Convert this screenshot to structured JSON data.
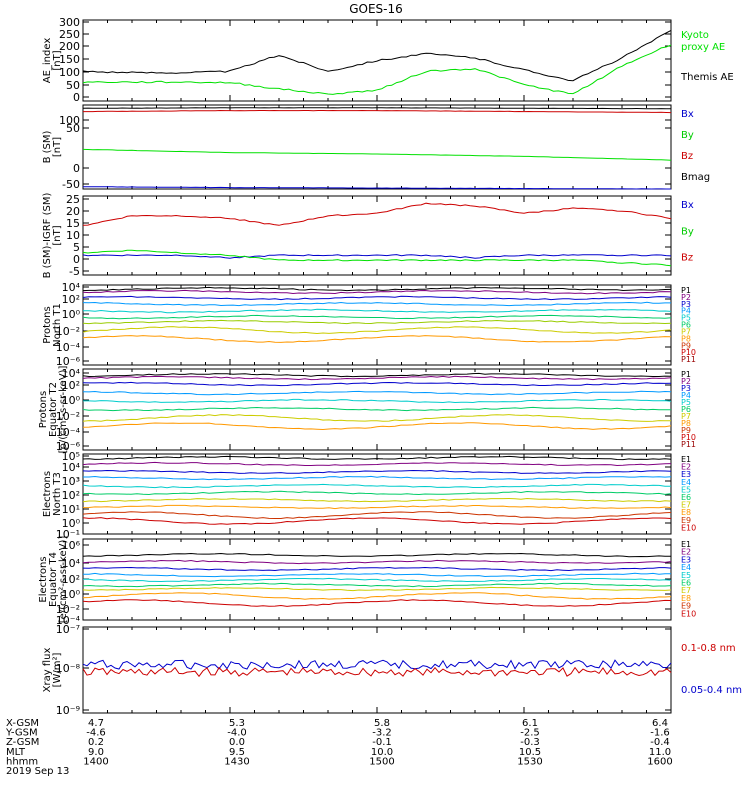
{
  "title": "GOES-16",
  "colors": {
    "black": "#000000",
    "green": "#00e000",
    "blue": "#0000cc",
    "red": "#cc0000",
    "legend_palette": [
      "#000000",
      "#800080",
      "#0000cc",
      "#0099ff",
      "#00cccc",
      "#00cc66",
      "#cccc00",
      "#ff9900",
      "#cc3300",
      "#cc0000",
      "#990000",
      "#660000"
    ]
  },
  "panels": [
    {
      "id": "ae",
      "ylabel_lines": [
        "AE_index",
        "[nT]"
      ],
      "ticks": [
        "300",
        "250",
        "200",
        "150",
        "100",
        "50",
        "0"
      ],
      "legend": [
        {
          "text": "Kyoto",
          "color": "#00e000"
        },
        {
          "text": "proxy AE",
          "color": "#00e000"
        },
        {
          "text": "Themis AE",
          "color": "#000000"
        }
      ]
    },
    {
      "id": "bsm",
      "ylabel_lines": [
        "B (SM)",
        "[nT]"
      ],
      "ticks": [
        "100",
        "50",
        "0",
        "-50"
      ],
      "legend": [
        {
          "text": "Bx",
          "color": "#0000cc"
        },
        {
          "text": "By",
          "color": "#00cc00"
        },
        {
          "text": "Bz",
          "color": "#cc0000"
        },
        {
          "text": "Bmag",
          "color": "#000000"
        }
      ]
    },
    {
      "id": "bigrf",
      "ylabel_lines": [
        "B (SM)-IGRF (SM)",
        "[nT]"
      ],
      "ticks": [
        "25",
        "20",
        "15",
        "10",
        "5",
        "0",
        "-5"
      ],
      "legend": [
        {
          "text": "Bx",
          "color": "#0000cc"
        },
        {
          "text": "By",
          "color": "#00cc00"
        },
        {
          "text": "Bz",
          "color": "#cc0000"
        }
      ]
    },
    {
      "id": "pn",
      "ylabel_lines": [
        "Protons",
        "North T1"
      ],
      "ticks": [
        "10⁴",
        "10²",
        "10⁰",
        "10⁻²",
        "10⁻⁴",
        "10⁻⁶"
      ],
      "legend": [
        {
          "text": "P1"
        },
        {
          "text": "P2"
        },
        {
          "text": "P3"
        },
        {
          "text": "P4"
        },
        {
          "text": "P5"
        },
        {
          "text": "P6"
        },
        {
          "text": "P7"
        },
        {
          "text": "P8"
        },
        {
          "text": "P9"
        },
        {
          "text": "P10"
        },
        {
          "text": "P11"
        }
      ]
    },
    {
      "id": "pe",
      "ylabel_lines": [
        "Protons",
        "Equator T2",
        "[p/(cm²-s-sr-keV)]"
      ],
      "ticks": [
        "10⁴",
        "10²",
        "10⁰",
        "10⁻²",
        "10⁻⁴",
        "10⁻⁶"
      ],
      "legend": [
        {
          "text": "P1"
        },
        {
          "text": "P2"
        },
        {
          "text": "P3"
        },
        {
          "text": "P4"
        },
        {
          "text": "P5"
        },
        {
          "text": "P6"
        },
        {
          "text": "P7"
        },
        {
          "text": "P8"
        },
        {
          "text": "P9"
        },
        {
          "text": "P10"
        },
        {
          "text": "P11"
        }
      ]
    },
    {
      "id": "en",
      "ylabel_lines": [
        "Electrons",
        "North T3"
      ],
      "ticks": [
        "10⁵",
        "10⁴",
        "10³",
        "10²",
        "10¹",
        "10⁰",
        "10⁻¹"
      ],
      "legend": [
        {
          "text": "E1"
        },
        {
          "text": "E2"
        },
        {
          "text": "E3"
        },
        {
          "text": "E4"
        },
        {
          "text": "E5"
        },
        {
          "text": "E6"
        },
        {
          "text": "E7"
        },
        {
          "text": "E8"
        },
        {
          "text": "E9"
        },
        {
          "text": "E10"
        }
      ]
    },
    {
      "id": "ee",
      "ylabel_lines": [
        "Electrons",
        "Equator T4",
        "[e/(cm²-s-sr-keV)]"
      ],
      "ticks": [
        "10⁶",
        "10⁴",
        "10²",
        "10⁰",
        "10⁻²",
        "10⁻⁴"
      ],
      "legend": [
        {
          "text": "E1"
        },
        {
          "text": "E2"
        },
        {
          "text": "E3"
        },
        {
          "text": "E4"
        },
        {
          "text": "E5"
        },
        {
          "text": "E6"
        },
        {
          "text": "E7"
        },
        {
          "text": "E8"
        },
        {
          "text": "E9"
        },
        {
          "text": "E10"
        }
      ]
    },
    {
      "id": "xray",
      "ylabel_lines": [
        "Xray flux",
        "[W/m²]"
      ],
      "ticks": [
        "10⁻⁷",
        "10⁻⁸",
        "10⁻⁹"
      ],
      "legend": [
        {
          "text": "0.1-0.8 nm",
          "color": "#cc0000"
        },
        {
          "text": "0.05-0.4 nm",
          "color": "#0000cc"
        }
      ]
    }
  ],
  "footer": {
    "labels": [
      "X-GSM",
      "Y-GSM",
      "Z-GSM",
      "MLT",
      "hhmm",
      "2019 Sep 13"
    ],
    "columns": [
      [
        "4.7",
        "-4.6",
        "0.2",
        "9.0",
        "1400"
      ],
      [
        "5.3",
        "-4.0",
        "0.0",
        "9.5",
        "1430"
      ],
      [
        "5.8",
        "-3.2",
        "-0.1",
        "10.0",
        "1500"
      ],
      [
        "6.1",
        "-2.5",
        "-0.3",
        "10.5",
        "1530"
      ],
      [
        "6.4",
        "-1.6",
        "-0.4",
        "11.0",
        "1600"
      ]
    ]
  },
  "chart_data": [
    {
      "type": "line",
      "panel": "ae",
      "x_label": "hhmm",
      "x": [
        1400,
        1410,
        1420,
        1430,
        1440,
        1450,
        1500,
        1510,
        1520,
        1530,
        1540,
        1550,
        1600
      ],
      "ylim": [
        0,
        300
      ],
      "series": [
        {
          "name": "Themis AE",
          "values": [
            110,
            105,
            105,
            110,
            170,
            110,
            150,
            175,
            160,
            115,
            75,
            160,
            260
          ]
        },
        {
          "name": "Kyoto proxy AE",
          "values": [
            70,
            70,
            70,
            68,
            45,
            25,
            40,
            110,
            120,
            60,
            25,
            130,
            210
          ]
        }
      ]
    },
    {
      "type": "line",
      "panel": "bsm",
      "ylim": [
        -50,
        130
      ],
      "x": [
        1400,
        1430,
        1500,
        1530,
        1600
      ],
      "series": [
        {
          "name": "Bmag",
          "values": [
            123,
            124,
            124,
            123,
            122
          ]
        },
        {
          "name": "Bz",
          "values": [
            116,
            118,
            118,
            116,
            114
          ]
        },
        {
          "name": "By",
          "values": [
            35,
            28,
            25,
            20,
            12
          ]
        },
        {
          "name": "Bx",
          "values": [
            -45,
            -47,
            -48,
            -49,
            -50
          ]
        }
      ]
    },
    {
      "type": "line",
      "panel": "bigrf",
      "ylim": [
        -5,
        27
      ],
      "x": [
        1400,
        1410,
        1420,
        1430,
        1440,
        1450,
        1500,
        1510,
        1520,
        1530,
        1540,
        1550,
        1600
      ],
      "series": [
        {
          "name": "Bz",
          "values": [
            15,
            19,
            19,
            18,
            15,
            19,
            20,
            24,
            23,
            20,
            22,
            21,
            18
          ]
        },
        {
          "name": "Bx",
          "values": [
            3,
            3,
            3,
            2,
            3,
            3,
            3,
            3,
            2,
            3,
            3,
            3,
            3
          ]
        },
        {
          "name": "By",
          "values": [
            4,
            5,
            4,
            3,
            1,
            1,
            1,
            1,
            1,
            1,
            1,
            0,
            -1
          ]
        }
      ]
    },
    {
      "type": "line",
      "panel": "pn",
      "yscale": "log",
      "ylim": [
        1e-06,
        10000.0
      ],
      "series": [
        {
          "name": "P1",
          "values": [
            2000
          ]
        },
        {
          "name": "P2",
          "values": [
            500
          ]
        },
        {
          "name": "P3",
          "values": [
            80
          ]
        },
        {
          "name": "P4",
          "values": [
            10
          ]
        },
        {
          "name": "P5",
          "values": [
            1
          ]
        },
        {
          "name": "P6",
          "values": [
            0.08
          ]
        },
        {
          "name": "P7",
          "values": [
            0.008
          ]
        },
        {
          "name": "P8",
          "values": [
            0.001
          ]
        },
        {
          "name": "P9",
          "values": [
            0.0002
          ]
        }
      ]
    },
    {
      "type": "line",
      "panel": "pe",
      "yscale": "log",
      "ylim": [
        1e-06,
        10000.0
      ],
      "series": [
        {
          "name": "P1",
          "values": [
            2000
          ]
        },
        {
          "name": "P2",
          "values": [
            500
          ]
        },
        {
          "name": "P3",
          "values": [
            60
          ]
        },
        {
          "name": "P4",
          "values": [
            5
          ]
        },
        {
          "name": "P5",
          "values": [
            0.5
          ]
        },
        {
          "name": "P6",
          "values": [
            0.02
          ]
        },
        {
          "name": "P7",
          "values": [
            0.002
          ]
        },
        {
          "name": "P8",
          "values": [
            0.0002
          ]
        }
      ]
    },
    {
      "type": "line",
      "panel": "en",
      "yscale": "log",
      "ylim": [
        0.1,
        100000.0
      ],
      "series": [
        {
          "name": "E1",
          "values": [
            50000
          ]
        },
        {
          "name": "E2",
          "values": [
            15000
          ]
        },
        {
          "name": "E3",
          "values": [
            3000
          ]
        },
        {
          "name": "E4",
          "values": [
            600
          ]
        },
        {
          "name": "E5",
          "values": [
            150
          ]
        },
        {
          "name": "E6",
          "values": [
            50
          ]
        },
        {
          "name": "E7",
          "values": [
            15
          ]
        },
        {
          "name": "E8",
          "values": [
            5
          ]
        },
        {
          "name": "E9",
          "values": [
            1.5
          ]
        },
        {
          "name": "E10",
          "values": [
            0.5
          ]
        }
      ]
    },
    {
      "type": "line",
      "panel": "ee",
      "yscale": "log",
      "ylim": [
        1e-05,
        1000000.0
      ],
      "series": [
        {
          "name": "E1",
          "values": [
            50000
          ]
        },
        {
          "name": "E2",
          "values": [
            5000
          ]
        },
        {
          "name": "E3",
          "values": [
            500
          ]
        },
        {
          "name": "E4",
          "values": [
            100
          ]
        },
        {
          "name": "E5",
          "values": [
            20
          ]
        },
        {
          "name": "E6",
          "values": [
            5
          ]
        },
        {
          "name": "E7",
          "values": [
            1
          ]
        },
        {
          "name": "E8",
          "values": [
            0.1
          ]
        },
        {
          "name": "E9",
          "values": [
            0.01
          ]
        }
      ]
    },
    {
      "type": "line",
      "panel": "xray",
      "yscale": "log",
      "ylim": [
        1e-09,
        1e-07
      ],
      "series": [
        {
          "name": "0.05-0.4 nm",
          "values": [
            1.2e-08
          ]
        },
        {
          "name": "0.1-0.8 nm",
          "values": [
            8e-09
          ]
        }
      ]
    }
  ]
}
